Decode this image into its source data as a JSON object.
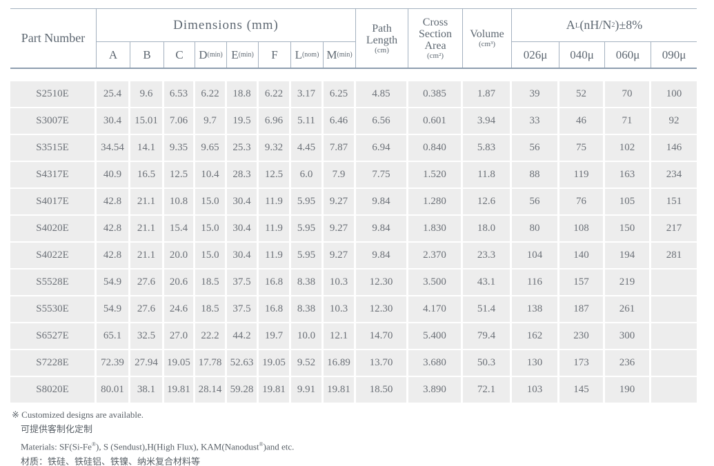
{
  "table": {
    "header": {
      "part_number": "Part Number",
      "dimensions_title": "Dimensions (mm)",
      "dim_cols": [
        [
          "A"
        ],
        [
          "B"
        ],
        [
          "C"
        ],
        [
          "D",
          {
            "sub": "(min)"
          }
        ],
        [
          "E",
          {
            "sub": "(min)"
          }
        ],
        [
          "F"
        ],
        [
          "L",
          {
            "sub": "(nom)"
          }
        ],
        [
          "M",
          {
            "sub": "(min)"
          }
        ]
      ],
      "path_length": {
        "line1": "Path",
        "line2": "Length",
        "unit": "(cm)"
      },
      "cross_section": {
        "line1": "Cross",
        "line2": "Section",
        "line3": "Area",
        "unit": "(cm²)"
      },
      "volume": {
        "line1": "Volume",
        "unit": "(cm³)"
      },
      "al_title_parts": [
        "A",
        {
          "sub": "L"
        },
        "(nH/N",
        {
          "sup": "2"
        },
        ")±8%"
      ],
      "al_cols": [
        "026μ",
        "040μ",
        "060μ",
        "090μ"
      ]
    },
    "rows": [
      {
        "part": "S2510E",
        "dims": [
          "25.4",
          "9.6",
          "6.53",
          "6.22",
          "18.8",
          "6.22",
          "3.17",
          "6.25"
        ],
        "path": "4.85",
        "cross": "0.385",
        "volume": "1.87",
        "al": [
          "39",
          "52",
          "70",
          "100"
        ]
      },
      {
        "part": "S3007E",
        "dims": [
          "30.4",
          "15.01",
          "7.06",
          "9.7",
          "19.5",
          "6.96",
          "5.11",
          "6.46"
        ],
        "path": "6.56",
        "cross": "0.601",
        "volume": "3.94",
        "al": [
          "33",
          "46",
          "71",
          "92"
        ]
      },
      {
        "part": "S3515E",
        "dims": [
          "34.54",
          "14.1",
          "9.35",
          "9.65",
          "25.3",
          "9.32",
          "4.45",
          "7.87"
        ],
        "path": "6.94",
        "cross": "0.840",
        "volume": "5.83",
        "al": [
          "56",
          "75",
          "102",
          "146"
        ]
      },
      {
        "part": "S4317E",
        "dims": [
          "40.9",
          "16.5",
          "12.5",
          "10.4",
          "28.3",
          "12.5",
          "6.0",
          "7.9"
        ],
        "path": "7.75",
        "cross": "1.520",
        "volume": "11.8",
        "al": [
          "88",
          "119",
          "163",
          "234"
        ]
      },
      {
        "part": "S4017E",
        "dims": [
          "42.8",
          "21.1",
          "10.8",
          "15.0",
          "30.4",
          "11.9",
          "5.95",
          "9.27"
        ],
        "path": "9.84",
        "cross": "1.280",
        "volume": "12.6",
        "al": [
          "56",
          "76",
          "105",
          "151"
        ]
      },
      {
        "part": "S4020E",
        "dims": [
          "42.8",
          "21.1",
          "15.4",
          "15.0",
          "30.4",
          "11.9",
          "5.95",
          "9.27"
        ],
        "path": "9.84",
        "cross": "1.830",
        "volume": "18.0",
        "al": [
          "80",
          "108",
          "150",
          "217"
        ]
      },
      {
        "part": "S4022E",
        "dims": [
          "42.8",
          "21.1",
          "20.0",
          "15.0",
          "30.4",
          "11.9",
          "5.95",
          "9.27"
        ],
        "path": "9.84",
        "cross": "2.370",
        "volume": "23.3",
        "al": [
          "104",
          "140",
          "194",
          "281"
        ]
      },
      {
        "part": "S5528E",
        "dims": [
          "54.9",
          "27.6",
          "20.6",
          "18.5",
          "37.5",
          "16.8",
          "8.38",
          "10.3"
        ],
        "path": "12.30",
        "cross": "3.500",
        "volume": "43.1",
        "al": [
          "116",
          "157",
          "219",
          ""
        ]
      },
      {
        "part": "S5530E",
        "dims": [
          "54.9",
          "27.6",
          "24.6",
          "18.5",
          "37.5",
          "16.8",
          "8.38",
          "10.3"
        ],
        "path": "12.30",
        "cross": "4.170",
        "volume": "51.4",
        "al": [
          "138",
          "187",
          "261",
          ""
        ]
      },
      {
        "part": "S6527E",
        "dims": [
          "65.1",
          "32.5",
          "27.0",
          "22.2",
          "44.2",
          "19.7",
          "10.0",
          "12.1"
        ],
        "path": "14.70",
        "cross": "5.400",
        "volume": "79.4",
        "al": [
          "162",
          "230",
          "300",
          ""
        ]
      },
      {
        "part": "S7228E",
        "dims": [
          "72.39",
          "27.94",
          "19.05",
          "17.78",
          "52.63",
          "19.05",
          "9.52",
          "16.89"
        ],
        "path": "13.70",
        "cross": "3.680",
        "volume": "50.3",
        "al": [
          "130",
          "173",
          "236",
          ""
        ]
      },
      {
        "part": "S8020E",
        "dims": [
          "80.01",
          "38.1",
          "19.81",
          "28.14",
          "59.28",
          "19.81",
          "9.91",
          "19.81"
        ],
        "path": "18.50",
        "cross": "3.890",
        "volume": "72.1",
        "al": [
          "103",
          "145",
          "190",
          ""
        ]
      }
    ]
  },
  "footnotes": {
    "note_symbol": "※",
    "note_en": "Customized designs are available.",
    "note_zh": "可提供客制化定制",
    "materials_en_parts": [
      "Materials: SF(Si-Fe",
      {
        "sup": "®"
      },
      "), S (Sendust),H(High Flux), KAM(Nanodust",
      {
        "sup": "®"
      },
      ")and etc."
    ],
    "materials_zh": "材质：铁硅、铁硅铝、铁镍、纳米复合材料等"
  },
  "colors": {
    "border": "#a3b0bf",
    "border_thick": "#8d9dae",
    "cell_bg": "#ededed",
    "text": "#66707a"
  }
}
